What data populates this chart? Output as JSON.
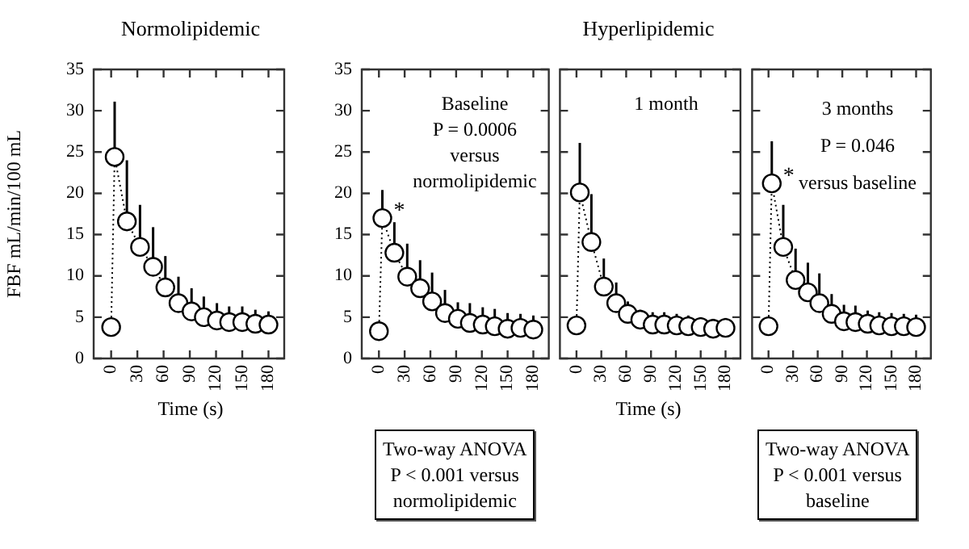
{
  "chart_data": [
    {
      "type": "line",
      "title": "Normolipidemic",
      "xlabel": "Time (s)",
      "ylabel": "FBF mL/min/100 mL",
      "x": [
        0,
        4,
        18,
        33,
        48,
        62,
        77,
        92,
        106,
        121,
        135,
        150,
        165,
        180
      ],
      "xlim": [
        -20,
        198
      ],
      "xticks": [
        0,
        30,
        60,
        90,
        120,
        150,
        180
      ],
      "ylim": [
        0,
        35
      ],
      "yticks": [
        0,
        5,
        10,
        15,
        20,
        25,
        30,
        35
      ],
      "marker": "circle",
      "line_style": "dotted",
      "grid": false,
      "legend": false,
      "series": [
        {
          "color": "#000000",
          "values": [
            3.8,
            24.4,
            16.6,
            13.5,
            11.1,
            8.6,
            6.7,
            5.7,
            5.0,
            4.6,
            4.4,
            4.4,
            4.2,
            4.1
          ],
          "errors": [
            null,
            [
              24.4,
              31.1
            ],
            [
              16.6,
              24.0
            ],
            [
              13.5,
              18.6
            ],
            [
              11.1,
              15.9
            ],
            [
              8.6,
              12.4
            ],
            [
              6.7,
              9.9
            ],
            [
              5.7,
              8.5
            ],
            [
              5.0,
              7.5
            ],
            [
              4.6,
              6.7
            ],
            [
              4.4,
              6.3
            ],
            [
              4.4,
              6.3
            ],
            [
              4.2,
              5.9
            ],
            [
              4.1,
              5.7
            ]
          ]
        }
      ]
    },
    {
      "type": "line",
      "x": [
        0,
        4,
        18,
        33,
        48,
        62,
        77,
        92,
        106,
        121,
        135,
        150,
        165,
        180
      ],
      "xlim": [
        -20,
        198
      ],
      "xticks": [
        0,
        30,
        60,
        90,
        120,
        150,
        180
      ],
      "ylim": [
        0,
        35
      ],
      "yticks": [
        0,
        5,
        10,
        15,
        20,
        25,
        30,
        35
      ],
      "marker": "circle",
      "line_style": "dotted",
      "grid": false,
      "legend": false,
      "annotations": [
        "Baseline\nP = 0.0006\nversus\nnormolipidemic",
        "Two-way ANOVA\nP < 0.001 versus\nnormolipidemic",
        {
          "text": "*",
          "x": 4,
          "y": 17.0
        }
      ],
      "series": [
        {
          "color": "#000000",
          "values": [
            3.3,
            17.0,
            12.8,
            9.9,
            8.5,
            6.9,
            5.5,
            4.8,
            4.3,
            4.1,
            3.9,
            3.6,
            3.7,
            3.5
          ],
          "errors": [
            null,
            [
              17.0,
              20.4
            ],
            [
              12.8,
              16.5
            ],
            [
              9.9,
              13.9
            ],
            [
              8.5,
              11.9
            ],
            [
              6.9,
              10.4
            ],
            [
              5.5,
              8.3
            ],
            [
              4.8,
              6.8
            ],
            [
              4.3,
              6.7
            ],
            [
              4.1,
              6.2
            ],
            [
              3.9,
              6.0
            ],
            [
              3.6,
              5.5
            ],
            [
              3.7,
              5.4
            ],
            [
              3.5,
              5.2
            ]
          ]
        }
      ]
    },
    {
      "type": "line",
      "title": "Hyperlipidemic",
      "xlabel": "Time (s)",
      "x": [
        0,
        4,
        18,
        33,
        48,
        62,
        77,
        92,
        106,
        121,
        135,
        150,
        165,
        180
      ],
      "xlim": [
        -20,
        198
      ],
      "xticks": [
        0,
        30,
        60,
        90,
        120,
        150,
        180
      ],
      "ylim": [
        0,
        35
      ],
      "yticks": [
        0,
        5,
        10,
        15,
        20,
        25,
        30,
        35
      ],
      "tick_labels": "x",
      "marker": "circle",
      "line_style": "dotted",
      "grid": false,
      "legend": false,
      "annotations": [
        "1 month"
      ],
      "series": [
        {
          "color": "#000000",
          "values": [
            4.0,
            20.1,
            14.1,
            8.7,
            6.7,
            5.4,
            4.7,
            4.1,
            4.1,
            4.0,
            3.9,
            3.8,
            3.6,
            3.7
          ],
          "errors": [
            null,
            [
              20.1,
              26.1
            ],
            [
              14.1,
              19.9
            ],
            [
              8.7,
              12.1
            ],
            [
              6.7,
              9.2
            ],
            [
              5.4,
              6.9
            ],
            [
              4.7,
              5.9
            ],
            [
              4.1,
              5.6
            ],
            [
              4.1,
              5.6
            ],
            [
              4.0,
              5.4
            ],
            [
              3.9,
              5.2
            ],
            [
              3.8,
              5.0
            ],
            [
              3.6,
              4.8
            ],
            [
              3.7,
              4.9
            ]
          ]
        }
      ]
    },
    {
      "type": "line",
      "x": [
        0,
        4,
        18,
        33,
        48,
        62,
        77,
        92,
        106,
        121,
        135,
        150,
        165,
        180
      ],
      "xlim": [
        -20,
        198
      ],
      "xticks": [
        0,
        30,
        60,
        90,
        120,
        150,
        180
      ],
      "ylim": [
        0,
        35
      ],
      "yticks": [
        0,
        5,
        10,
        15,
        20,
        25,
        30,
        35
      ],
      "tick_labels": "x",
      "marker": "circle",
      "line_style": "dotted",
      "grid": false,
      "legend": false,
      "annotations": [
        "3 months\nP = 0.046\nversus baseline",
        "Two-way ANOVA\nP < 0.001 versus\nbaseline",
        {
          "text": "*",
          "x": 4,
          "y": 21.2
        }
      ],
      "series": [
        {
          "color": "#000000",
          "values": [
            3.9,
            21.2,
            13.5,
            9.5,
            8.0,
            6.7,
            5.4,
            4.5,
            4.4,
            4.2,
            4.0,
            3.9,
            3.9,
            3.8
          ],
          "errors": [
            null,
            [
              21.2,
              26.3
            ],
            [
              13.5,
              18.6
            ],
            [
              9.5,
              13.3
            ],
            [
              8.0,
              11.6
            ],
            [
              6.7,
              10.3
            ],
            [
              5.4,
              7.8
            ],
            [
              4.5,
              6.5
            ],
            [
              4.4,
              6.4
            ],
            [
              4.2,
              5.8
            ],
            [
              4.0,
              5.6
            ],
            [
              3.9,
              5.5
            ],
            [
              3.9,
              5.4
            ],
            [
              3.8,
              5.3
            ]
          ]
        }
      ]
    }
  ]
}
